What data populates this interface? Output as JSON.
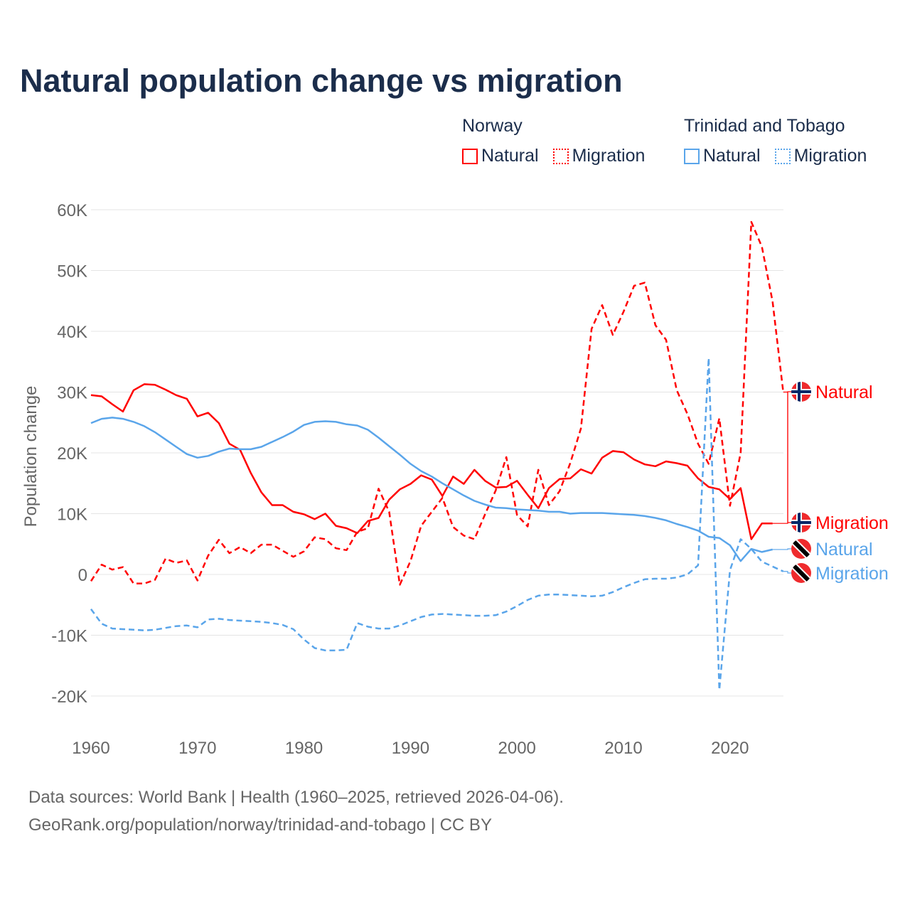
{
  "title": "Natural population change vs migration",
  "legend": {
    "groups": [
      {
        "name": "Norway",
        "items": [
          {
            "label": "Natural",
            "style": "solid"
          },
          {
            "label": "Migration",
            "style": "dotted"
          }
        ],
        "color": "#ff0000"
      },
      {
        "name": "Trinidad and Tobago",
        "items": [
          {
            "label": "Natural",
            "style": "solid"
          },
          {
            "label": "Migration",
            "style": "dotted"
          }
        ],
        "color": "#5aa5ea"
      }
    ]
  },
  "footer": {
    "line1": "Data sources: World Bank | Health (1960–2025, retrieved 2026-04-06).",
    "line2": "GeoRank.org/population/norway/trinidad-and-tobago | CC BY"
  },
  "chart_data": {
    "type": "line",
    "title": "Natural population change vs migration",
    "xlabel": "",
    "ylabel": "Population change",
    "xlim": [
      1960,
      2025
    ],
    "ylim": [
      -20000,
      60000
    ],
    "x_ticks": [
      1960,
      1970,
      1980,
      1990,
      2000,
      2010,
      2020
    ],
    "x_tick_labels": [
      "1960",
      "1970",
      "1980",
      "1990",
      "2000",
      "2010",
      "2020"
    ],
    "y_ticks": [
      60000,
      50000,
      40000,
      30000,
      20000,
      10000,
      0,
      -10000,
      -20000
    ],
    "y_tick_labels": [
      "60K",
      "50K",
      "40K",
      "30K",
      "20K",
      "10K",
      "0",
      "-10K",
      "-20K"
    ],
    "grid": true,
    "legend_position": "top-right",
    "x_start": 1960,
    "series": [
      {
        "name": "Norway Natural",
        "end_label": "Natural",
        "country": "norway",
        "color": "#ff0000",
        "dash": false,
        "values_k": [
          29.5,
          29.3,
          28,
          26.8,
          30.3,
          31.3,
          31.2,
          30.4,
          29.5,
          28.9,
          26,
          26.6,
          24.9,
          21.5,
          20.5,
          16.7,
          13.5,
          11.4,
          11.4,
          10.3,
          9.9,
          9.1,
          10,
          8,
          7.6,
          6.8,
          8.8,
          9.3,
          12.3,
          14,
          14.9,
          16.3,
          15.6,
          12.9,
          16.1,
          14.9,
          17.2,
          15.4,
          14.3,
          14.4,
          15.4,
          13.1,
          10.9,
          14.2,
          15.7,
          15.8,
          17.3,
          16.6,
          19.2,
          20.3,
          20.1,
          18.9,
          18.1,
          17.8,
          18.6,
          18.3,
          17.9,
          15.8,
          14.4,
          14,
          12.4,
          14.2,
          5.8,
          8.4,
          8.4
        ]
      },
      {
        "name": "Norway Migration",
        "end_label": "Migration",
        "country": "norway",
        "color": "#ff0000",
        "dash": true,
        "values_k": [
          -1.1,
          1.6,
          0.8,
          1.2,
          -1.5,
          -1.5,
          -0.9,
          2.6,
          1.9,
          2.3,
          -1,
          3.1,
          5.7,
          3.5,
          4.5,
          3.5,
          4.9,
          4.9,
          3.9,
          2.9,
          3.8,
          6.1,
          5.8,
          4.3,
          4,
          7,
          7.6,
          14.1,
          10.3,
          -1.7,
          2.2,
          8,
          10.3,
          12.6,
          7.8,
          6.4,
          5.8,
          9.9,
          13.8,
          19.3,
          9.8,
          7.9,
          17.2,
          11.4,
          13.7,
          18.3,
          24,
          40.4,
          44.3,
          39.4,
          43.2,
          47.5,
          48,
          41,
          38.6,
          30.3,
          26.4,
          21.5,
          18.2,
          25.7,
          11.3,
          20,
          58,
          53.9,
          44.9,
          30
        ]
      },
      {
        "name": "Trinidad and Tobago Natural",
        "end_label": "Natural",
        "country": "tt",
        "color": "#5aa5ea",
        "dash": false,
        "values_k": [
          24.9,
          25.6,
          25.8,
          25.6,
          25.1,
          24.4,
          23.4,
          22.2,
          21,
          19.8,
          19.2,
          19.5,
          20.2,
          20.7,
          20.6,
          20.6,
          21,
          21.8,
          22.6,
          23.5,
          24.6,
          25.1,
          25.2,
          25.1,
          24.7,
          24.5,
          23.8,
          22.5,
          21.1,
          19.7,
          18.2,
          17,
          16.1,
          15,
          14,
          13,
          12.1,
          11.5,
          11,
          10.9,
          10.7,
          10.6,
          10.5,
          10.3,
          10.3,
          10,
          10.1,
          10.1,
          10.1,
          10,
          9.9,
          9.8,
          9.6,
          9.3,
          8.9,
          8.3,
          7.8,
          7.2,
          6.2,
          6,
          4.8,
          2.2,
          4.2,
          3.7,
          4.1
        ]
      },
      {
        "name": "Trinidad and Tobago Migration",
        "end_label": "Migration",
        "country": "tt",
        "color": "#5aa5ea",
        "dash": true,
        "values_k": [
          -5.7,
          -8.1,
          -8.9,
          -9,
          -9.1,
          -9.2,
          -9.1,
          -8.8,
          -8.5,
          -8.4,
          -8.7,
          -7.4,
          -7.3,
          -7.5,
          -7.6,
          -7.7,
          -7.8,
          -8,
          -8.3,
          -9,
          -10.7,
          -12.1,
          -12.5,
          -12.5,
          -12.4,
          -8,
          -8.6,
          -8.9,
          -8.9,
          -8.4,
          -7.7,
          -7,
          -6.6,
          -6.5,
          -6.6,
          -6.7,
          -6.8,
          -6.8,
          -6.7,
          -6.1,
          -5.2,
          -4.2,
          -3.5,
          -3.3,
          -3.3,
          -3.4,
          -3.5,
          -3.6,
          -3.5,
          -2.9,
          -2.1,
          -1.4,
          -0.8,
          -0.7,
          -0.7,
          -0.5,
          0,
          1.5,
          35.6,
          -19,
          0.7,
          5.8,
          4.2,
          2.1,
          1.3,
          0.5
        ]
      }
    ]
  }
}
